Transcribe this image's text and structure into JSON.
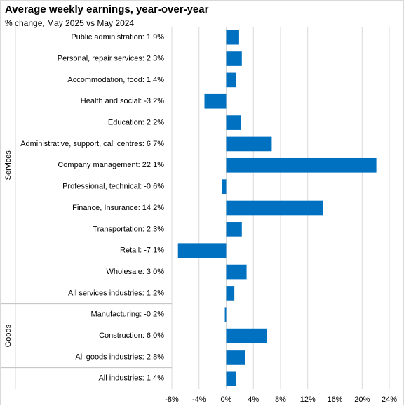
{
  "chart_data": {
    "type": "bar",
    "orientation": "horizontal",
    "title": "Average weekly earnings, year-over-year",
    "subtitle": "% change, May  2025 vs May 2024",
    "xlabel": "",
    "ylabel": "",
    "xlim": [
      -8,
      24
    ],
    "xticks": [
      -8,
      -4,
      0,
      4,
      8,
      12,
      16,
      20,
      24
    ],
    "xtick_labels": [
      "-8%",
      "-4%",
      "0%",
      "4%",
      "8%",
      "12%",
      "16%",
      "20%",
      "24%"
    ],
    "grid": "vertical",
    "bar_color": "#0070C0",
    "groups": [
      {
        "name": "Services",
        "start": 0,
        "end": 12
      },
      {
        "name": "Goods",
        "start": 13,
        "end": 15
      },
      {
        "name": "",
        "start": 16,
        "end": 16
      }
    ],
    "categories": [
      "Public administration:  1.9%",
      "Personal, repair services:  2.3%",
      "Accommodation, food:  1.4%",
      "Health and social:  -3.2%",
      "Education:  2.2%",
      "Administrative, support, call centres:  6.7%",
      "Company management:  22.1%",
      "Professional, technical:  -0.6%",
      "Finance, Insurance:  14.2%",
      "Transportation:  2.3%",
      "Retail:  -7.1%",
      "Wholesale:  3.0%",
      "All services industries:  1.2%",
      "Manufacturing:  -0.2%",
      "Construction:  6.0%",
      "All goods industries:  2.8%",
      "All industries:  1.4%"
    ],
    "values": [
      1.9,
      2.3,
      1.4,
      -3.2,
      2.2,
      6.7,
      22.1,
      -0.6,
      14.2,
      2.3,
      -7.1,
      3.0,
      1.2,
      -0.2,
      6.0,
      2.8,
      1.4
    ]
  }
}
